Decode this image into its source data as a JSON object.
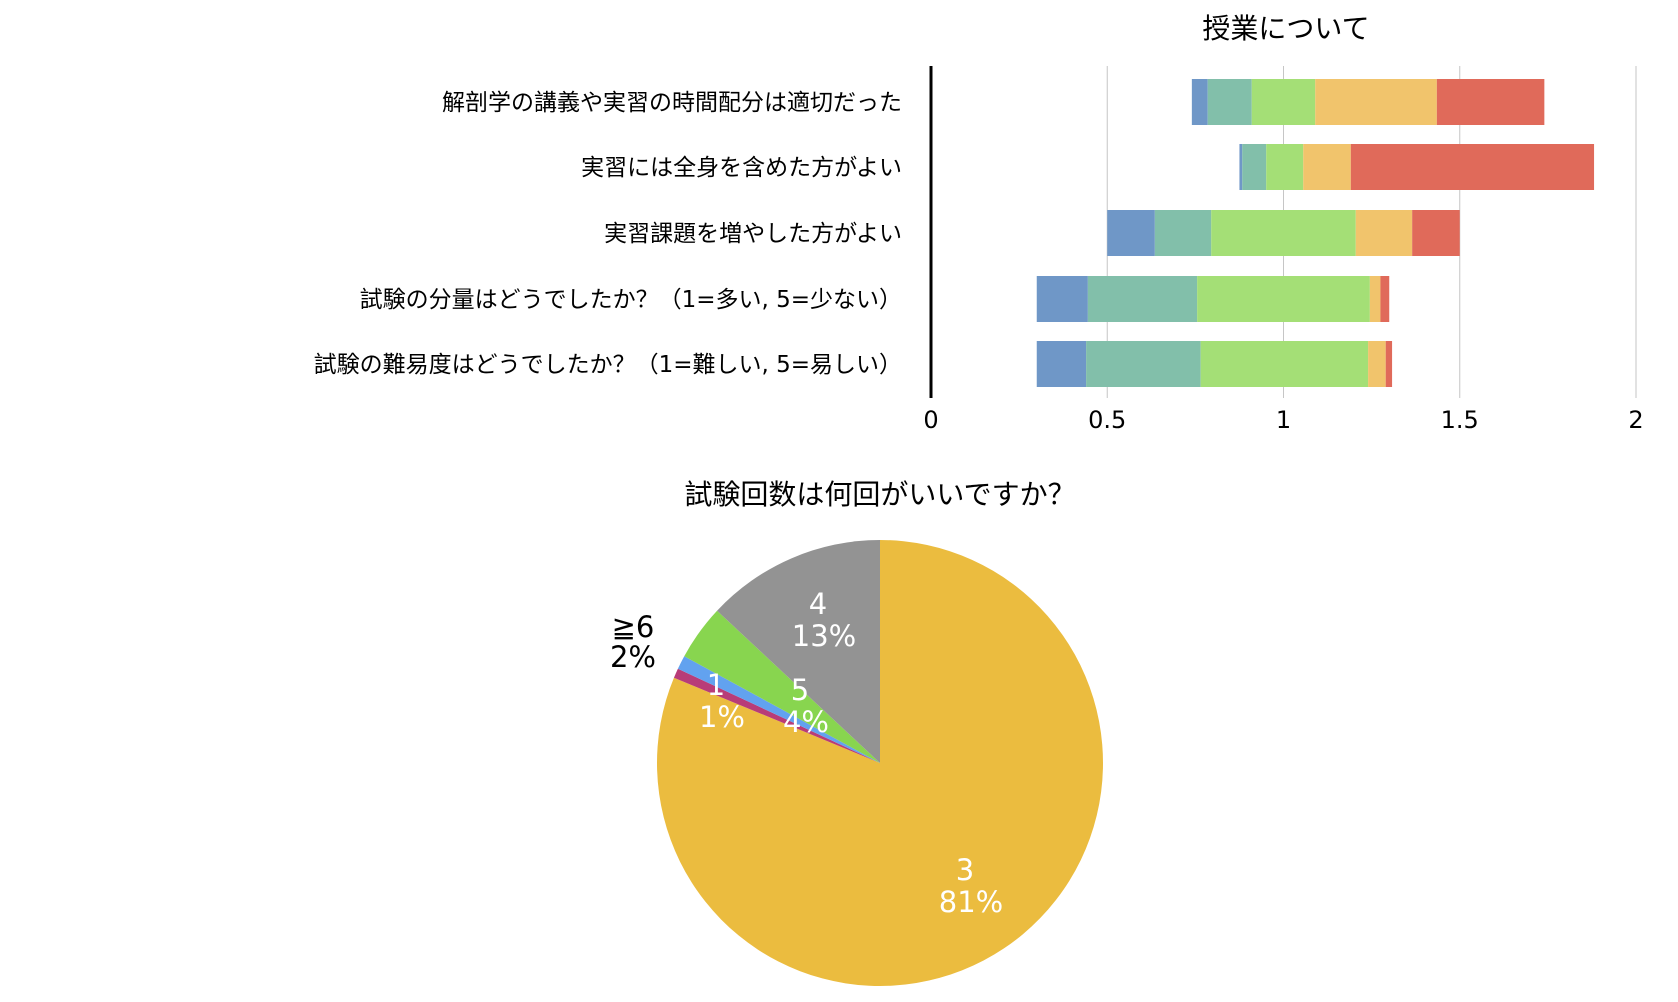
{
  "chart_data": [
    {
      "type": "bar",
      "orientation": "horizontal",
      "stacked": true,
      "title": "授業について",
      "categories": [
        "解剖学の講義や実習の時間配分は適切だった",
        "実習には全身を含めた方がよい",
        "実習課題を増やした方がよい",
        "試験の分量はどうでしたか？（1=多い, 5=少ない）",
        "試験の難易度はどうでしたか？（1=難しい, 5=易しい）"
      ],
      "series": [
        {
          "color": "#6f97c7",
          "starts": [
            0.74,
            0.875,
            0.5,
            0.3,
            0.3
          ],
          "values": [
            0.045,
            0.008,
            0.135,
            0.145,
            0.14
          ]
        },
        {
          "color": "#82bfaa",
          "values": [
            0.125,
            0.068,
            0.16,
            0.31,
            0.325
          ]
        },
        {
          "color": "#a4df76",
          "values": [
            0.18,
            0.105,
            0.41,
            0.49,
            0.475
          ]
        },
        {
          "color": "#f1c46c",
          "values": [
            0.345,
            0.135,
            0.16,
            0.03,
            0.05
          ]
        },
        {
          "color": "#e06a5a",
          "values": [
            0.305,
            0.69,
            0.135,
            0.025,
            0.018
          ]
        }
      ],
      "xlim": [
        0,
        2
      ],
      "xticks": [
        "0",
        "0.5",
        "1",
        "1.5",
        "2"
      ],
      "grid": true,
      "legend": "none"
    },
    {
      "type": "pie",
      "title": "試験回数は何回がいいですか？",
      "slices": [
        {
          "label": "3",
          "value": 81,
          "pct": "81%",
          "color": "#ebbc3f"
        },
        {
          "label": "",
          "value": 0.7,
          "pct": "",
          "color": "#b83c78"
        },
        {
          "label": "1",
          "value": 1,
          "pct": "1%",
          "color": "#62a2ef"
        },
        {
          "label": "5",
          "value": 4,
          "pct": "4%",
          "color": "#88d54f"
        },
        {
          "label": "4",
          "value": 13,
          "pct": "13%",
          "color": "#939393"
        }
      ],
      "outside_label": {
        "label": "≧6",
        "pct": "2%"
      },
      "legend": "none"
    }
  ]
}
